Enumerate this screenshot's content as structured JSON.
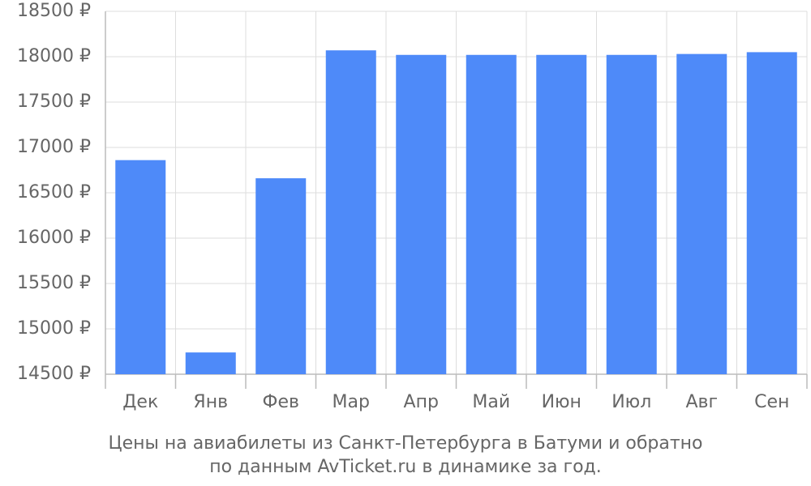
{
  "chart_data": {
    "type": "bar",
    "title": "Цены на авиабилеты из Санкт-Петербурга в Батуми и обратно",
    "subtitle": "по данным AvTicket.ru в динамике за год.",
    "categories": [
      "Дек",
      "Янв",
      "Фев",
      "Мар",
      "Апр",
      "Май",
      "Июн",
      "Июл",
      "Авг",
      "Сен"
    ],
    "values": [
      16860,
      14740,
      16660,
      18070,
      18020,
      18020,
      18020,
      18020,
      18030,
      18050
    ],
    "color": "#4e8af9",
    "ylim": [
      14500,
      18500
    ],
    "yticks": [
      {
        "value": 14500,
        "label": "14500 ₽"
      },
      {
        "value": 15000,
        "label": "15000 ₽"
      },
      {
        "value": 15500,
        "label": "15500 ₽"
      },
      {
        "value": 16000,
        "label": "16000 ₽"
      },
      {
        "value": 16500,
        "label": "16500 ₽"
      },
      {
        "value": 17000,
        "label": "17000 ₽"
      },
      {
        "value": 17500,
        "label": "17500 ₽"
      },
      {
        "value": 18000,
        "label": "18000 ₽"
      },
      {
        "value": 18500,
        "label": "18500 ₽"
      }
    ],
    "grid": true
  }
}
